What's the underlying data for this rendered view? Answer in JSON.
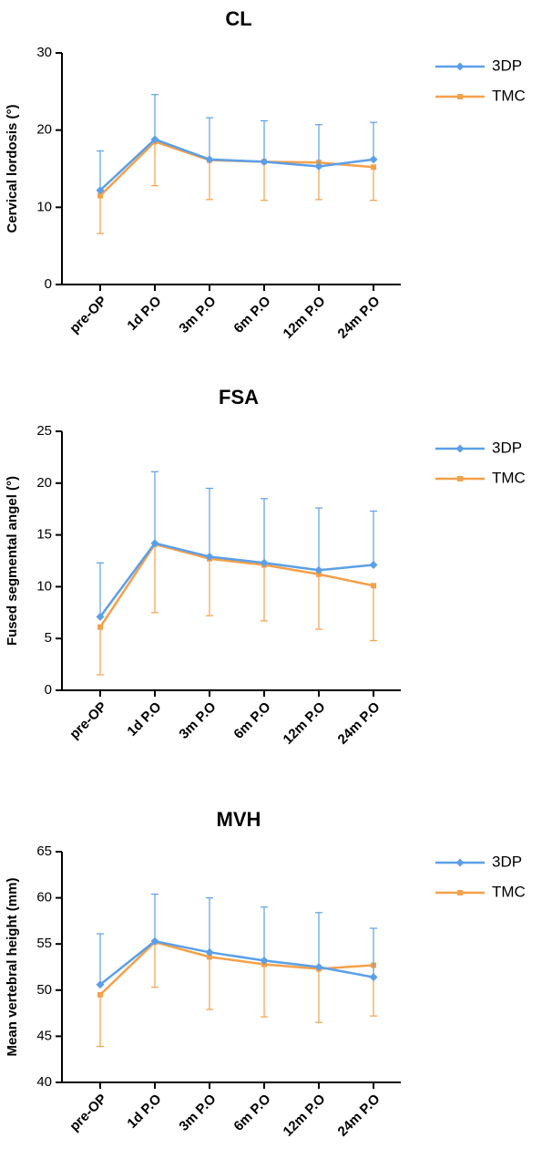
{
  "chart_data": [
    {
      "type": "line",
      "title": "CL",
      "ylabel": "Cervical lordosis (°)",
      "xlabel": "",
      "categories": [
        "pre-OP",
        "1d P.O",
        "3m P.O",
        "6m P.O",
        "12m P.O",
        "24m P.O"
      ],
      "ylim": [
        0,
        30
      ],
      "yticks": [
        0,
        10,
        20,
        30
      ],
      "legend": "top-right",
      "series": [
        {
          "name": "3DP",
          "color": "#5B9FE8",
          "marker": "diamond",
          "values": [
            12.2,
            18.8,
            16.2,
            15.9,
            15.3,
            16.2
          ],
          "error_upper": [
            17.3,
            24.6,
            21.6,
            21.2,
            20.7,
            21.0
          ],
          "error_lower": [
            12.2,
            18.8,
            16.2,
            15.9,
            15.3,
            16.2
          ]
        },
        {
          "name": "TMC",
          "color": "#F5A04A",
          "marker": "square",
          "values": [
            11.5,
            18.5,
            16.1,
            15.9,
            15.8,
            15.2
          ],
          "error_upper": [
            11.5,
            18.5,
            16.1,
            15.9,
            15.8,
            15.2
          ],
          "error_lower": [
            6.6,
            12.8,
            11.0,
            10.9,
            11.0,
            10.9
          ]
        }
      ]
    },
    {
      "type": "line",
      "title": "FSA",
      "ylabel": "Fused segmental angel (°)",
      "xlabel": "",
      "categories": [
        "pre-OP",
        "1d P.O",
        "3m P.O",
        "6m P.O",
        "12m P.O",
        "24m P.O"
      ],
      "ylim": [
        0,
        25
      ],
      "yticks": [
        0,
        5,
        10,
        15,
        20,
        25
      ],
      "legend": "top-right",
      "series": [
        {
          "name": "3DP",
          "color": "#5B9FE8",
          "marker": "diamond",
          "values": [
            7.1,
            14.2,
            12.9,
            12.3,
            11.6,
            12.1
          ],
          "error_upper": [
            12.3,
            21.1,
            19.5,
            18.5,
            17.6,
            17.3
          ],
          "error_lower": [
            7.1,
            14.2,
            12.9,
            12.3,
            11.6,
            12.1
          ]
        },
        {
          "name": "TMC",
          "color": "#F5A04A",
          "marker": "square",
          "values": [
            6.1,
            14.1,
            12.7,
            12.1,
            11.2,
            10.1
          ],
          "error_upper": [
            6.1,
            14.1,
            12.7,
            12.1,
            11.2,
            10.1
          ],
          "error_lower": [
            1.5,
            7.5,
            7.2,
            6.7,
            5.9,
            4.8
          ]
        }
      ]
    },
    {
      "type": "line",
      "title": "MVH",
      "ylabel": "Mean vertebral height (mm)",
      "xlabel": "",
      "categories": [
        "pre-OP",
        "1d P.O",
        "3m P.O",
        "6m P.O",
        "12m P.O",
        "24m P.O"
      ],
      "ylim": [
        40,
        65
      ],
      "yticks": [
        40,
        45,
        50,
        55,
        60,
        65
      ],
      "legend": "top-right",
      "series": [
        {
          "name": "3DP",
          "color": "#5B9FE8",
          "marker": "diamond",
          "values": [
            50.6,
            55.3,
            54.1,
            53.2,
            52.5,
            51.4
          ],
          "error_upper": [
            56.1,
            60.4,
            60.0,
            59.0,
            58.4,
            56.7
          ],
          "error_lower": [
            50.6,
            55.3,
            54.1,
            53.2,
            52.5,
            51.4
          ]
        },
        {
          "name": "TMC",
          "color": "#F5A04A",
          "marker": "square",
          "values": [
            49.5,
            55.2,
            53.6,
            52.8,
            52.3,
            52.7
          ],
          "error_upper": [
            49.5,
            55.2,
            53.6,
            52.8,
            52.3,
            52.7
          ],
          "error_lower": [
            43.9,
            50.3,
            47.9,
            47.1,
            46.5,
            47.2
          ]
        }
      ]
    }
  ]
}
